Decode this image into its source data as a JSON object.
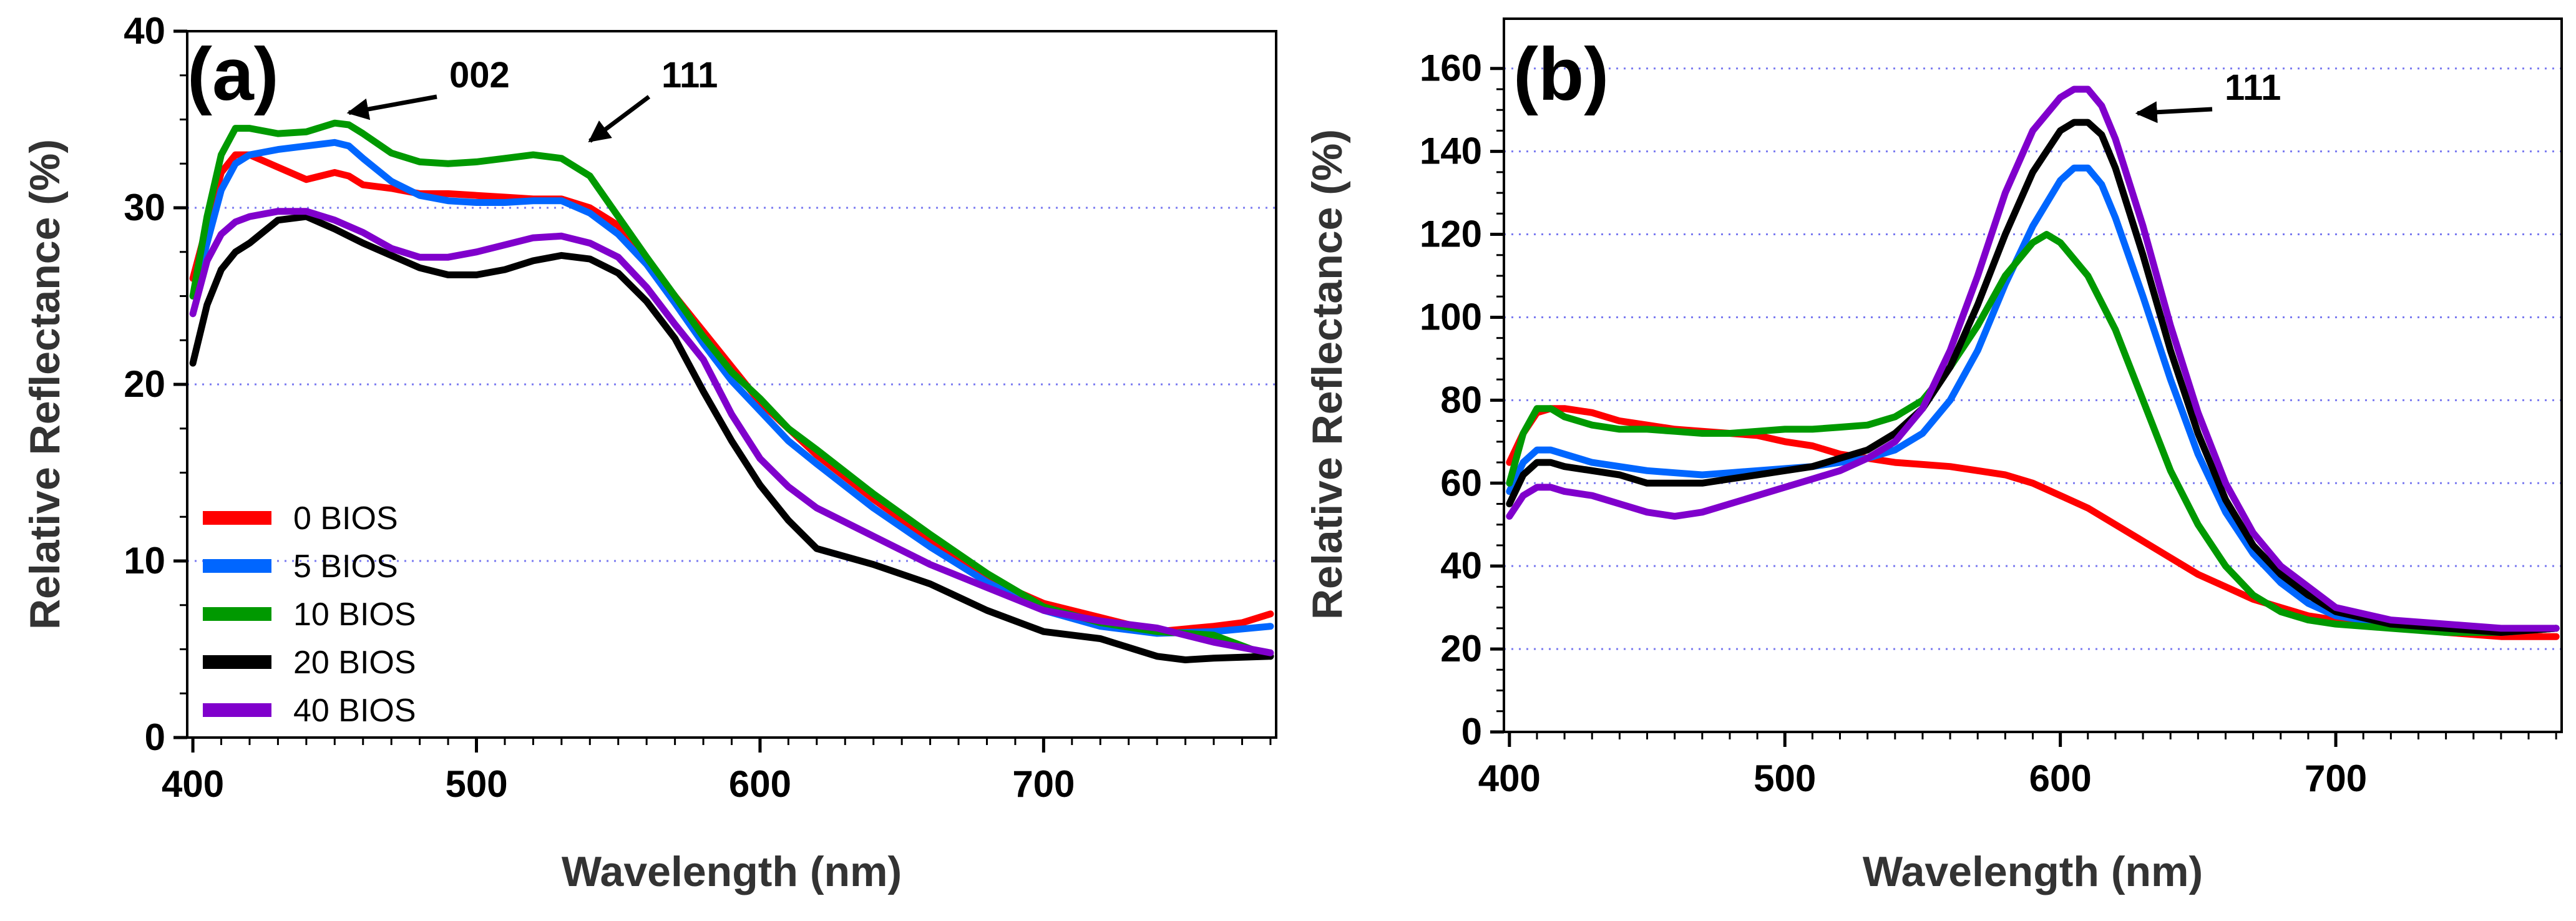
{
  "chart_data": [
    {
      "panel_label": "(a)",
      "type": "line",
      "xlabel": "Wavelength (nm)",
      "ylabel": "Relative Reflectance (%)",
      "xlim": [
        398,
        782
      ],
      "ylim": [
        0,
        40
      ],
      "xticks": [
        400,
        500,
        600,
        700
      ],
      "yticks": [
        0,
        10,
        20,
        30,
        40
      ],
      "grid": "horizontal dotted",
      "legend": "bottom-left",
      "series": [
        {
          "name": "0 BIOS",
          "color": "#ff0000",
          "x": [
            400,
            405,
            410,
            415,
            420,
            430,
            440,
            450,
            455,
            460,
            470,
            480,
            490,
            500,
            510,
            520,
            530,
            540,
            550,
            560,
            570,
            580,
            590,
            600,
            610,
            620,
            640,
            660,
            680,
            700,
            720,
            740,
            760,
            770,
            780
          ],
          "y": [
            26,
            29,
            32,
            33,
            33,
            32.3,
            31.6,
            32,
            31.8,
            31.3,
            31.1,
            30.8,
            30.8,
            30.7,
            30.6,
            30.5,
            30.5,
            30,
            29,
            27,
            25,
            23,
            21,
            19,
            17.5,
            16,
            13.5,
            11.2,
            9,
            7.6,
            6.8,
            6,
            6.3,
            6.5,
            7
          ]
        },
        {
          "name": "5 BIOS",
          "color": "#0066ff",
          "x": [
            400,
            405,
            410,
            415,
            420,
            430,
            440,
            450,
            455,
            460,
            470,
            480,
            490,
            500,
            510,
            520,
            530,
            540,
            550,
            560,
            570,
            580,
            590,
            600,
            610,
            620,
            640,
            660,
            680,
            700,
            720,
            740,
            760,
            780
          ],
          "y": [
            25,
            28,
            31,
            32.5,
            33,
            33.3,
            33.5,
            33.7,
            33.5,
            32.8,
            31.5,
            30.7,
            30.4,
            30.3,
            30.3,
            30.4,
            30.4,
            29.7,
            28.5,
            26.8,
            24.6,
            22.3,
            20.2,
            18.5,
            16.8,
            15.5,
            13,
            10.8,
            8.8,
            7.2,
            6.3,
            5.9,
            6,
            6.3
          ]
        },
        {
          "name": "10 BIOS",
          "color": "#009900",
          "x": [
            400,
            405,
            410,
            415,
            420,
            430,
            440,
            450,
            455,
            460,
            470,
            480,
            490,
            500,
            510,
            520,
            530,
            540,
            550,
            560,
            570,
            580,
            590,
            600,
            610,
            620,
            640,
            660,
            680,
            700,
            720,
            740,
            760,
            780
          ],
          "y": [
            25,
            29.5,
            33,
            34.5,
            34.5,
            34.2,
            34.3,
            34.8,
            34.7,
            34.2,
            33.1,
            32.6,
            32.5,
            32.6,
            32.8,
            33,
            32.8,
            31.8,
            29.5,
            27.2,
            25,
            22.7,
            20.7,
            19.2,
            17.5,
            16.3,
            13.8,
            11.5,
            9.3,
            7.4,
            6.5,
            6,
            5.8,
            4.6
          ]
        },
        {
          "name": "20 BIOS",
          "color": "#000000",
          "x": [
            400,
            405,
            410,
            415,
            420,
            430,
            440,
            450,
            460,
            470,
            480,
            490,
            500,
            510,
            520,
            530,
            540,
            550,
            560,
            570,
            580,
            590,
            600,
            610,
            620,
            640,
            660,
            680,
            700,
            720,
            740,
            750,
            760,
            780
          ],
          "y": [
            21.2,
            24.5,
            26.5,
            27.5,
            28,
            29.3,
            29.5,
            28.8,
            28,
            27.3,
            26.6,
            26.2,
            26.2,
            26.5,
            27,
            27.3,
            27.1,
            26.3,
            24.7,
            22.6,
            19.6,
            16.8,
            14.3,
            12.3,
            10.7,
            9.8,
            8.7,
            7.2,
            6,
            5.6,
            4.6,
            4.4,
            4.5,
            4.6
          ]
        },
        {
          "name": "40 BIOS",
          "color": "#8000cc",
          "x": [
            400,
            405,
            410,
            415,
            420,
            430,
            440,
            450,
            460,
            470,
            480,
            490,
            500,
            510,
            520,
            530,
            540,
            550,
            560,
            570,
            580,
            590,
            600,
            610,
            620,
            640,
            660,
            680,
            700,
            720,
            740,
            760,
            780
          ],
          "y": [
            24,
            27,
            28.5,
            29.2,
            29.5,
            29.8,
            29.8,
            29.3,
            28.6,
            27.7,
            27.2,
            27.2,
            27.5,
            27.9,
            28.3,
            28.4,
            28,
            27.2,
            25.5,
            23.4,
            21.4,
            18.3,
            15.8,
            14.2,
            13,
            11.4,
            9.8,
            8.5,
            7.2,
            6.6,
            6.2,
            5.4,
            4.8
          ]
        }
      ],
      "annotations": [
        {
          "text": "002",
          "target_x": 455,
          "target_y": 35.1
        },
        {
          "text": "111",
          "target_x": 540,
          "target_y": 33.5
        }
      ]
    },
    {
      "panel_label": "(b)",
      "type": "line",
      "xlabel": "Wavelength (nm)",
      "ylabel": "Relative Reflectance (%)",
      "xlim": [
        398,
        782
      ],
      "ylim": [
        0,
        172
      ],
      "xticks": [
        400,
        500,
        600,
        700
      ],
      "yticks": [
        0,
        20,
        40,
        60,
        80,
        100,
        120,
        140,
        160
      ],
      "grid": "horizontal dotted",
      "legend": "none",
      "series": [
        {
          "name": "0 BIOS",
          "color": "#ff0000",
          "x": [
            400,
            405,
            410,
            415,
            420,
            430,
            440,
            450,
            460,
            470,
            480,
            490,
            500,
            510,
            520,
            530,
            540,
            550,
            560,
            570,
            580,
            590,
            600,
            610,
            620,
            630,
            640,
            650,
            660,
            670,
            680,
            690,
            700,
            720,
            740,
            760,
            780
          ],
          "y": [
            65,
            72,
            77,
            78,
            78,
            77,
            75,
            74,
            73,
            72.5,
            72,
            71.5,
            70,
            69,
            67,
            66,
            65,
            64.5,
            64,
            63,
            62,
            60,
            57,
            54,
            50,
            46,
            42,
            38,
            35,
            32,
            30,
            28,
            27,
            25.5,
            24,
            23,
            23
          ]
        },
        {
          "name": "5 BIOS",
          "color": "#0066ff",
          "x": [
            400,
            405,
            410,
            415,
            420,
            430,
            440,
            450,
            460,
            470,
            480,
            490,
            500,
            510,
            520,
            530,
            540,
            550,
            560,
            570,
            580,
            590,
            600,
            605,
            610,
            615,
            620,
            630,
            640,
            650,
            660,
            670,
            680,
            690,
            700,
            720,
            740,
            760,
            780
          ],
          "y": [
            58,
            65,
            68,
            68,
            67,
            65,
            64,
            63,
            62.5,
            62,
            62.5,
            63,
            63.5,
            64,
            65,
            66,
            68,
            72,
            80,
            92,
            108,
            122,
            133,
            136,
            136,
            132,
            124,
            105,
            85,
            67,
            53,
            43,
            36,
            31,
            28,
            26,
            25,
            24,
            25
          ]
        },
        {
          "name": "10 BIOS",
          "color": "#009900",
          "x": [
            400,
            405,
            410,
            415,
            420,
            430,
            440,
            450,
            460,
            470,
            480,
            490,
            500,
            510,
            520,
            530,
            540,
            550,
            560,
            570,
            580,
            590,
            595,
            600,
            610,
            620,
            630,
            640,
            650,
            660,
            670,
            680,
            690,
            700,
            720,
            740,
            760,
            780
          ],
          "y": [
            60,
            72,
            78,
            78,
            76,
            74,
            73,
            73,
            72.5,
            72,
            72,
            72.5,
            73,
            73,
            73.5,
            74,
            76,
            80,
            88,
            98,
            110,
            118,
            120,
            118,
            110,
            97,
            80,
            63,
            50,
            40,
            33,
            29,
            27,
            26,
            25,
            24,
            24,
            25
          ]
        },
        {
          "name": "20 BIOS",
          "color": "#000000",
          "x": [
            400,
            405,
            410,
            415,
            420,
            430,
            440,
            450,
            460,
            470,
            480,
            490,
            500,
            510,
            520,
            530,
            540,
            550,
            560,
            570,
            580,
            590,
            600,
            605,
            610,
            615,
            620,
            630,
            640,
            650,
            660,
            670,
            680,
            690,
            700,
            720,
            740,
            760,
            780
          ],
          "y": [
            55,
            62,
            65,
            65,
            64,
            63,
            62,
            60,
            60,
            60,
            61,
            62,
            63,
            64,
            66,
            68,
            72,
            78,
            88,
            103,
            120,
            135,
            145,
            147,
            147,
            144,
            136,
            115,
            92,
            72,
            56,
            45,
            38,
            33,
            29,
            26,
            25,
            24,
            25
          ]
        },
        {
          "name": "40 BIOS",
          "color": "#8000cc",
          "x": [
            400,
            405,
            410,
            415,
            420,
            430,
            440,
            450,
            460,
            470,
            480,
            490,
            500,
            510,
            520,
            530,
            540,
            550,
            560,
            570,
            580,
            590,
            600,
            605,
            610,
            615,
            620,
            630,
            640,
            650,
            660,
            670,
            680,
            690,
            700,
            720,
            740,
            760,
            780
          ],
          "y": [
            52,
            57,
            59,
            59,
            58,
            57,
            55,
            53,
            52,
            53,
            55,
            57,
            59,
            61,
            63,
            66,
            70,
            78,
            92,
            110,
            130,
            145,
            153,
            155,
            155,
            151,
            143,
            122,
            98,
            77,
            60,
            48,
            40,
            35,
            30,
            27,
            26,
            25,
            25
          ]
        }
      ],
      "annotations": [
        {
          "text": "111",
          "target_x": 628,
          "target_y": 148
        }
      ]
    }
  ]
}
